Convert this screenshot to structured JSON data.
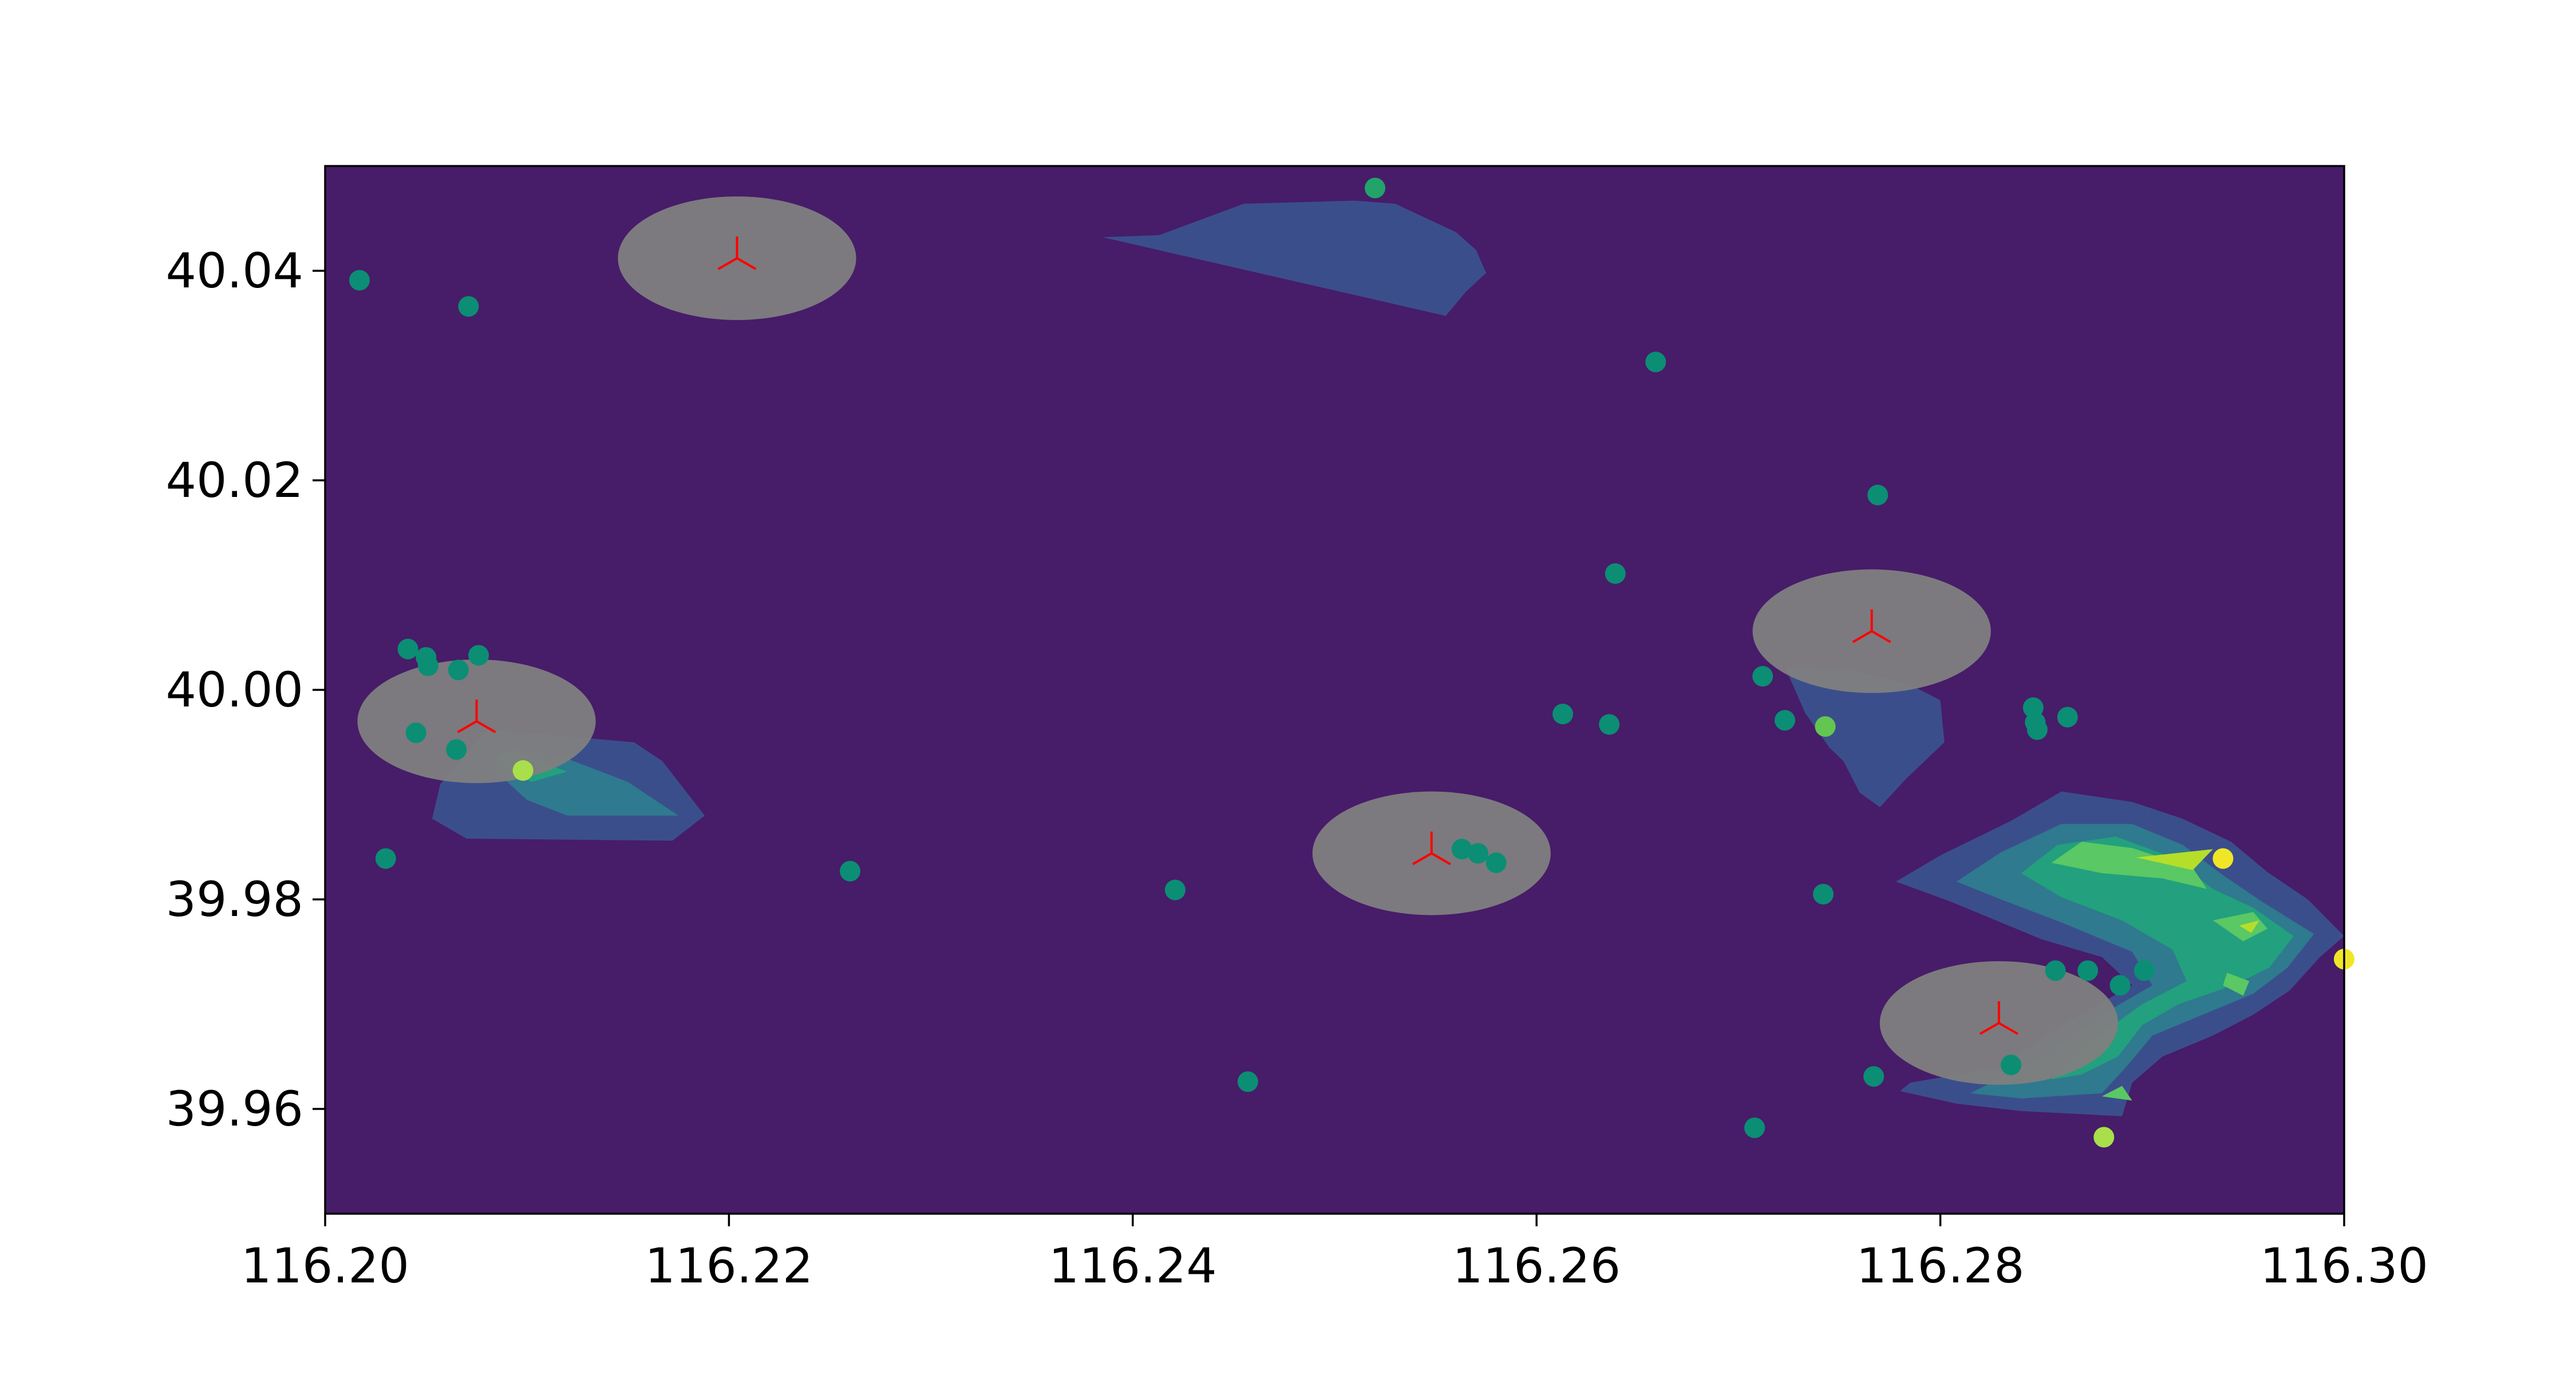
{
  "chart_data": {
    "type": "scatter",
    "title": "",
    "xlabel": "",
    "ylabel": "",
    "xlim": [
      116.2,
      116.3
    ],
    "ylim": [
      39.95,
      40.05
    ],
    "grid": false,
    "legend": "none",
    "x_ticks": [
      "116.20",
      "116.22",
      "116.24",
      "116.26",
      "116.28",
      "116.30"
    ],
    "y_ticks": [
      "39.96",
      "39.98",
      "40.00",
      "40.02",
      "40.04"
    ],
    "background_color": "#471c69",
    "colormap": "viridis",
    "points": [
      {
        "x": 116.2017,
        "y": 40.0391,
        "c": "#0b8e74"
      },
      {
        "x": 116.2071,
        "y": 40.0366,
        "c": "#0b8e74"
      },
      {
        "x": 116.252,
        "y": 40.0479,
        "c": "#21a36a"
      },
      {
        "x": 116.2659,
        "y": 40.0313,
        "c": "#0b8e74"
      },
      {
        "x": 116.2769,
        "y": 40.0186,
        "c": "#0b8e74"
      },
      {
        "x": 116.2639,
        "y": 40.0111,
        "c": "#0b8e74"
      },
      {
        "x": 116.2041,
        "y": 40.0039,
        "c": "#0b8e74"
      },
      {
        "x": 116.205,
        "y": 40.0031,
        "c": "#0b8e74"
      },
      {
        "x": 116.2051,
        "y": 40.0023,
        "c": "#0b8e74"
      },
      {
        "x": 116.2066,
        "y": 40.0019,
        "c": "#0b8e74"
      },
      {
        "x": 116.2076,
        "y": 40.0033,
        "c": "#0b8e74"
      },
      {
        "x": 116.2045,
        "y": 39.9959,
        "c": "#0b8e74"
      },
      {
        "x": 116.2065,
        "y": 39.9943,
        "c": "#0b8e74"
      },
      {
        "x": 116.2098,
        "y": 39.9923,
        "c": "#a8df4a"
      },
      {
        "x": 116.203,
        "y": 39.9839,
        "c": "#0b8e74"
      },
      {
        "x": 116.226,
        "y": 39.9827,
        "c": "#0b8e74"
      },
      {
        "x": 116.2421,
        "y": 39.9809,
        "c": "#0b8e74"
      },
      {
        "x": 116.2457,
        "y": 39.9626,
        "c": "#0b8e74"
      },
      {
        "x": 116.2563,
        "y": 39.9848,
        "c": "#0b8e74"
      },
      {
        "x": 116.2571,
        "y": 39.9844,
        "c": "#0b8e74"
      },
      {
        "x": 116.258,
        "y": 39.9835,
        "c": "#0b8e74"
      },
      {
        "x": 116.2613,
        "y": 39.9977,
        "c": "#0b8e74"
      },
      {
        "x": 116.2636,
        "y": 39.9967,
        "c": "#0b8e74"
      },
      {
        "x": 116.2712,
        "y": 40.0013,
        "c": "#0b8e74"
      },
      {
        "x": 116.2723,
        "y": 39.9971,
        "c": "#0b8e74"
      },
      {
        "x": 116.2743,
        "y": 39.9965,
        "c": "#63c650"
      },
      {
        "x": 116.2742,
        "y": 39.9805,
        "c": "#0b8e74"
      },
      {
        "x": 116.2767,
        "y": 39.9631,
        "c": "#0b8e74"
      },
      {
        "x": 116.2708,
        "y": 39.9582,
        "c": "#0b8e74"
      },
      {
        "x": 116.2846,
        "y": 39.9983,
        "c": "#0b8e74"
      },
      {
        "x": 116.2847,
        "y": 39.9969,
        "c": "#0b8e74"
      },
      {
        "x": 116.2848,
        "y": 39.9962,
        "c": "#0b8e74"
      },
      {
        "x": 116.2863,
        "y": 39.9974,
        "c": "#0b8e74"
      },
      {
        "x": 116.2857,
        "y": 39.9732,
        "c": "#0b8e74"
      },
      {
        "x": 116.2873,
        "y": 39.9732,
        "c": "#0b8e74"
      },
      {
        "x": 116.2889,
        "y": 39.9718,
        "c": "#0b8e74"
      },
      {
        "x": 116.2901,
        "y": 39.9732,
        "c": "#0b8e74"
      },
      {
        "x": 116.2835,
        "y": 39.9642,
        "c": "#0b8e74"
      },
      {
        "x": 116.2881,
        "y": 39.9573,
        "c": "#a8df4a"
      },
      {
        "x": 116.294,
        "y": 39.9839,
        "c": "#f0e627"
      },
      {
        "x": 116.3,
        "y": 39.9743,
        "c": "#f0e627"
      }
    ],
    "markers": [
      {
        "x": 116.2204,
        "y": 40.0412
      },
      {
        "x": 116.2075,
        "y": 39.997
      },
      {
        "x": 116.2548,
        "y": 39.9844
      },
      {
        "x": 116.2766,
        "y": 40.0056
      },
      {
        "x": 116.2829,
        "y": 39.9682
      }
    ],
    "marker_color": "#ff0000",
    "circle_color": "#808080",
    "circle_radius": 0.0059,
    "contours": [
      {
        "color": "#3b4e8c",
        "points": [
          [
            116.2385,
            40.0432
          ],
          [
            116.2413,
            40.0434
          ],
          [
            116.2455,
            40.0464
          ],
          [
            116.251,
            40.0467
          ],
          [
            116.253,
            40.0464
          ],
          [
            116.256,
            40.0437
          ],
          [
            116.257,
            40.042
          ],
          [
            116.2575,
            40.0398
          ],
          [
            116.2565,
            40.038
          ],
          [
            116.2555,
            40.0357
          ]
        ]
      },
      {
        "color": "#3b4e8c",
        "points": [
          [
            116.2053,
            39.9877
          ],
          [
            116.2057,
            39.991
          ],
          [
            116.208,
            39.9962
          ],
          [
            116.2153,
            39.995
          ],
          [
            116.2167,
            39.9932
          ],
          [
            116.2188,
            39.988
          ],
          [
            116.2172,
            39.9856
          ],
          [
            116.207,
            39.9858
          ]
        ]
      },
      {
        "color": "#2f7a8e",
        "points": [
          [
            116.208,
            39.993
          ],
          [
            116.2093,
            39.9943
          ],
          [
            116.2115,
            39.9938
          ],
          [
            116.215,
            39.9912
          ],
          [
            116.2175,
            39.988
          ],
          [
            116.212,
            39.988
          ],
          [
            116.21,
            39.9895
          ]
        ]
      },
      {
        "color": "#23a07e",
        "points": [
          [
            116.2085,
            39.9935
          ],
          [
            116.2093,
            39.9942
          ],
          [
            116.2108,
            39.993
          ],
          [
            116.212,
            39.9922
          ],
          [
            116.2102,
            39.9912
          ]
        ]
      },
      {
        "color": "#3b4e8c",
        "points": [
          [
            116.2723,
            40.0022
          ],
          [
            116.2755,
            40.002
          ],
          [
            116.2785,
            40.0005
          ],
          [
            116.28,
            39.999
          ],
          [
            116.2802,
            39.995
          ],
          [
            116.2783,
            39.9915
          ],
          [
            116.277,
            39.9888
          ],
          [
            116.276,
            39.9902
          ],
          [
            116.2752,
            39.9932
          ],
          [
            116.2745,
            39.9945
          ],
          [
            116.2733,
            39.9978
          ]
        ]
      },
      {
        "color": "#3b4e8c",
        "points": [
          [
            116.2778,
            39.9817
          ],
          [
            116.28,
            39.9842
          ],
          [
            116.2835,
            39.9875
          ],
          [
            116.286,
            39.9903
          ],
          [
            116.2895,
            39.9893
          ],
          [
            116.292,
            39.9877
          ],
          [
            116.2944,
            39.9855
          ],
          [
            116.2962,
            39.9826
          ],
          [
            116.2982,
            39.98
          ],
          [
            116.3,
            39.9765
          ],
          [
            116.2988,
            39.9745
          ],
          [
            116.2973,
            39.9713
          ],
          [
            116.2955,
            39.969
          ],
          [
            116.2935,
            39.967
          ],
          [
            116.291,
            39.965
          ],
          [
            116.2895,
            39.9625
          ],
          [
            116.289,
            39.9593
          ],
          [
            116.284,
            39.9598
          ],
          [
            116.2808,
            39.9605
          ],
          [
            116.278,
            39.9617
          ],
          [
            116.2785,
            39.9625
          ],
          [
            116.283,
            39.964
          ],
          [
            116.286,
            39.968
          ],
          [
            116.2895,
            39.9718
          ],
          [
            116.288,
            39.9745
          ],
          [
            116.285,
            39.9762
          ],
          [
            116.2805,
            39.9798
          ]
        ]
      },
      {
        "color": "#2f7a8e",
        "points": [
          [
            116.2808,
            39.9817
          ],
          [
            116.283,
            39.9845
          ],
          [
            116.286,
            39.9872
          ],
          [
            116.2895,
            39.9872
          ],
          [
            116.292,
            39.9852
          ],
          [
            116.294,
            39.9823
          ],
          [
            116.296,
            39.9797
          ],
          [
            116.2985,
            39.9767
          ],
          [
            116.2972,
            39.9735
          ],
          [
            116.2955,
            39.971
          ],
          [
            116.293,
            39.969
          ],
          [
            116.2905,
            39.967
          ],
          [
            116.2892,
            39.964
          ],
          [
            116.288,
            39.9615
          ],
          [
            116.284,
            39.961
          ],
          [
            116.2815,
            39.9615
          ],
          [
            116.285,
            39.965
          ],
          [
            116.288,
            39.969
          ],
          [
            116.2905,
            39.9718
          ],
          [
            116.2895,
            39.975
          ],
          [
            116.286,
            39.9778
          ],
          [
            116.283,
            39.98
          ]
        ]
      },
      {
        "color": "#23a07e",
        "points": [
          [
            116.284,
            39.9825
          ],
          [
            116.2858,
            39.9852
          ],
          [
            116.2887,
            39.986
          ],
          [
            116.2915,
            39.984
          ],
          [
            116.2935,
            39.981
          ],
          [
            116.2955,
            39.9792
          ],
          [
            116.2975,
            39.9765
          ],
          [
            116.2963,
            39.9735
          ],
          [
            116.2945,
            39.9718
          ],
          [
            116.2918,
            39.97
          ],
          [
            116.29,
            39.968
          ],
          [
            116.2888,
            39.965
          ],
          [
            116.287,
            39.9633
          ],
          [
            116.2855,
            39.9628
          ],
          [
            116.2875,
            39.9665
          ],
          [
            116.29,
            39.97
          ],
          [
            116.2922,
            39.9722
          ],
          [
            116.2915,
            39.9752
          ],
          [
            116.289,
            39.978
          ],
          [
            116.286,
            39.9802
          ]
        ]
      },
      {
        "color": "#5ac864",
        "points": [
          [
            116.2855,
            39.9835
          ],
          [
            116.287,
            39.9855
          ],
          [
            116.2895,
            39.9849
          ],
          [
            116.2925,
            39.983
          ],
          [
            116.2932,
            39.981
          ],
          [
            116.291,
            39.982
          ],
          [
            116.288,
            39.9825
          ]
        ]
      },
      {
        "color": "#5ac864",
        "points": [
          [
            116.2935,
            39.978
          ],
          [
            116.2955,
            39.9788
          ],
          [
            116.2962,
            39.9772
          ],
          [
            116.295,
            39.976
          ]
        ]
      },
      {
        "color": "#5ac864",
        "points": [
          [
            116.2942,
            39.973
          ],
          [
            116.2953,
            39.9722
          ],
          [
            116.295,
            39.9708
          ],
          [
            116.294,
            39.9718
          ]
        ]
      },
      {
        "color": "#5ac864",
        "points": [
          [
            116.288,
            39.9612
          ],
          [
            116.289,
            39.9622
          ],
          [
            116.2895,
            39.9608
          ]
        ]
      },
      {
        "color": "#b5de2b",
        "points": [
          [
            116.2897,
            39.984
          ],
          [
            116.2935,
            39.9848
          ],
          [
            116.2925,
            39.9828
          ]
        ]
      },
      {
        "color": "#b5de2b",
        "points": [
          [
            116.2948,
            39.9775
          ],
          [
            116.2958,
            39.978
          ],
          [
            116.2954,
            39.9768
          ]
        ]
      }
    ]
  }
}
